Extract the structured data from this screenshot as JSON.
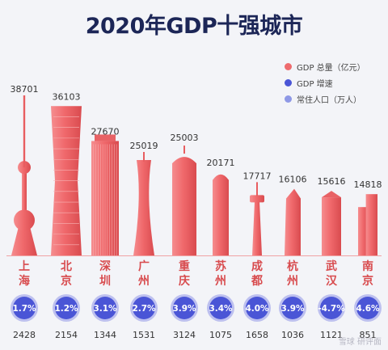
{
  "chart_data": {
    "type": "bar",
    "title": "2020年GDP十强城市",
    "legend": [
      {
        "label": "GDP 总量（亿元）",
        "color": "#ee6b6e"
      },
      {
        "label": "GDP 增速",
        "color": "#4a55d6"
      },
      {
        "label": "常住人口（万人）",
        "color": "#8e98e6"
      }
    ],
    "categories": [
      "上海",
      "北京",
      "深圳",
      "广州",
      "重庆",
      "苏州",
      "成都",
      "杭州",
      "武汉",
      "南京"
    ],
    "city_labels": [
      "上\n海",
      "北\n京",
      "深\n圳",
      "广\n州",
      "重\n庆",
      "苏\n州",
      "成\n都",
      "杭\n州",
      "武\n汉",
      "南\n京"
    ],
    "series": [
      {
        "name": "GDP 总量（亿元）",
        "values": [
          38701,
          36103,
          27670,
          25019,
          25003,
          20171,
          17717,
          16106,
          15616,
          14818
        ],
        "labels": [
          "38701",
          "36103",
          "27670",
          "25019",
          "25003",
          "20171",
          "17717",
          "16106",
          "15616",
          "14818"
        ]
      },
      {
        "name": "GDP 增速",
        "values": [
          1.7,
          1.2,
          3.1,
          2.7,
          3.9,
          3.4,
          4.0,
          3.9,
          -4.7,
          4.6
        ],
        "labels": [
          "1.7%",
          "1.2%",
          "3.1%",
          "2.7%",
          "3.9%",
          "3.4%",
          "4.0%",
          "3.9%",
          "-4.7%",
          "4.6%"
        ]
      },
      {
        "name": "常住人口（万人）",
        "values": [
          2428,
          2154,
          1344,
          1531,
          3124,
          1075,
          1658,
          1036,
          1121,
          851
        ],
        "labels": [
          "2428",
          "2154",
          "1344",
          "1531",
          "3124",
          "1075",
          "1658",
          "1036",
          "1121",
          "851"
        ]
      }
    ],
    "legend_position": "top-right"
  },
  "colors": {
    "title": "#1c2657",
    "tower": "#ee6b6e",
    "city": "#d84b4e",
    "circle": "#4a55d6",
    "value": "#333333"
  },
  "watermark": "雪球 研评面"
}
